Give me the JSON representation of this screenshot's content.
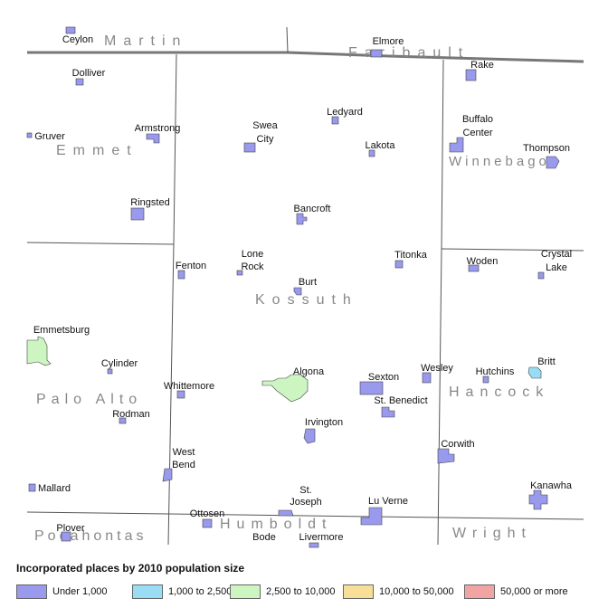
{
  "map": {
    "colors": {
      "under_1000": "#9999ee",
      "1000_2500": "#99ddf5",
      "2500_10000": "#ccf5c2",
      "10000_50000": "#f7df9a",
      "50000_more": "#f2a3a3",
      "border_major": "#777777",
      "border_minor": "#555555"
    },
    "counties": [
      "Martin",
      "Faribault",
      "Emmet",
      "Winnebago",
      "Kossuth",
      "Palo Alto",
      "Hancock",
      "Pocahontas",
      "Humboldt",
      "Wright"
    ],
    "places": [
      {
        "label": "Ceylon",
        "class": "under_1000"
      },
      {
        "label": "Elmore",
        "class": "under_1000"
      },
      {
        "label": "Dolliver",
        "class": "under_1000"
      },
      {
        "label": "Rake",
        "class": "under_1000"
      },
      {
        "label": "Gruver",
        "class": "under_1000"
      },
      {
        "label": "Armstrong",
        "class": "under_1000"
      },
      {
        "label": "Swea City",
        "class": "under_1000"
      },
      {
        "label": "Ledyard",
        "class": "under_1000"
      },
      {
        "label": "Buffalo Center",
        "class": "under_1000"
      },
      {
        "label": "Lakota",
        "class": "under_1000"
      },
      {
        "label": "Thompson",
        "class": "under_1000"
      },
      {
        "label": "Ringsted",
        "class": "under_1000"
      },
      {
        "label": "Bancroft",
        "class": "under_1000"
      },
      {
        "label": "Titonka",
        "class": "under_1000"
      },
      {
        "label": "Woden",
        "class": "under_1000"
      },
      {
        "label": "Crystal Lake",
        "class": "under_1000"
      },
      {
        "label": "Fenton",
        "class": "under_1000"
      },
      {
        "label": "Lone Rock",
        "class": "under_1000"
      },
      {
        "label": "Burt",
        "class": "under_1000"
      },
      {
        "label": "Emmetsburg",
        "class": "2500_10000"
      },
      {
        "label": "Cylinder",
        "class": "under_1000"
      },
      {
        "label": "Whittemore",
        "class": "under_1000"
      },
      {
        "label": "Algona",
        "class": "2500_10000"
      },
      {
        "label": "Sexton",
        "class": "under_1000"
      },
      {
        "label": "Wesley",
        "class": "under_1000"
      },
      {
        "label": "Hutchins",
        "class": "under_1000"
      },
      {
        "label": "Britt",
        "class": "1000_2500"
      },
      {
        "label": "St. Benedict",
        "class": "under_1000"
      },
      {
        "label": "Rodman",
        "class": "under_1000"
      },
      {
        "label": "Irvington",
        "class": "under_1000"
      },
      {
        "label": "Corwith",
        "class": "under_1000"
      },
      {
        "label": "West Bend",
        "class": "under_1000"
      },
      {
        "label": "Mallard",
        "class": "under_1000"
      },
      {
        "label": "St. Joseph",
        "class": "under_1000"
      },
      {
        "label": "Lu Verne",
        "class": "under_1000"
      },
      {
        "label": "Kanawha",
        "class": "under_1000"
      },
      {
        "label": "Ottosen",
        "class": "under_1000"
      },
      {
        "label": "Plover",
        "class": "under_1000"
      },
      {
        "label": "Bode",
        "class": "under_1000"
      },
      {
        "label": "Livermore",
        "class": "under_1000"
      }
    ]
  },
  "legend": {
    "title": "Incorporated places by 2010 population size",
    "items": [
      {
        "label": "Under 1,000",
        "color": "#9999ee"
      },
      {
        "label": "1,000 to 2,500",
        "color": "#99ddf5"
      },
      {
        "label": "2,500 to 10,000",
        "color": "#ccf5c2"
      },
      {
        "label": "10,000 to 50,000",
        "color": "#f7df9a"
      },
      {
        "label": "50,000 or more",
        "color": "#f2a3a3"
      }
    ]
  }
}
